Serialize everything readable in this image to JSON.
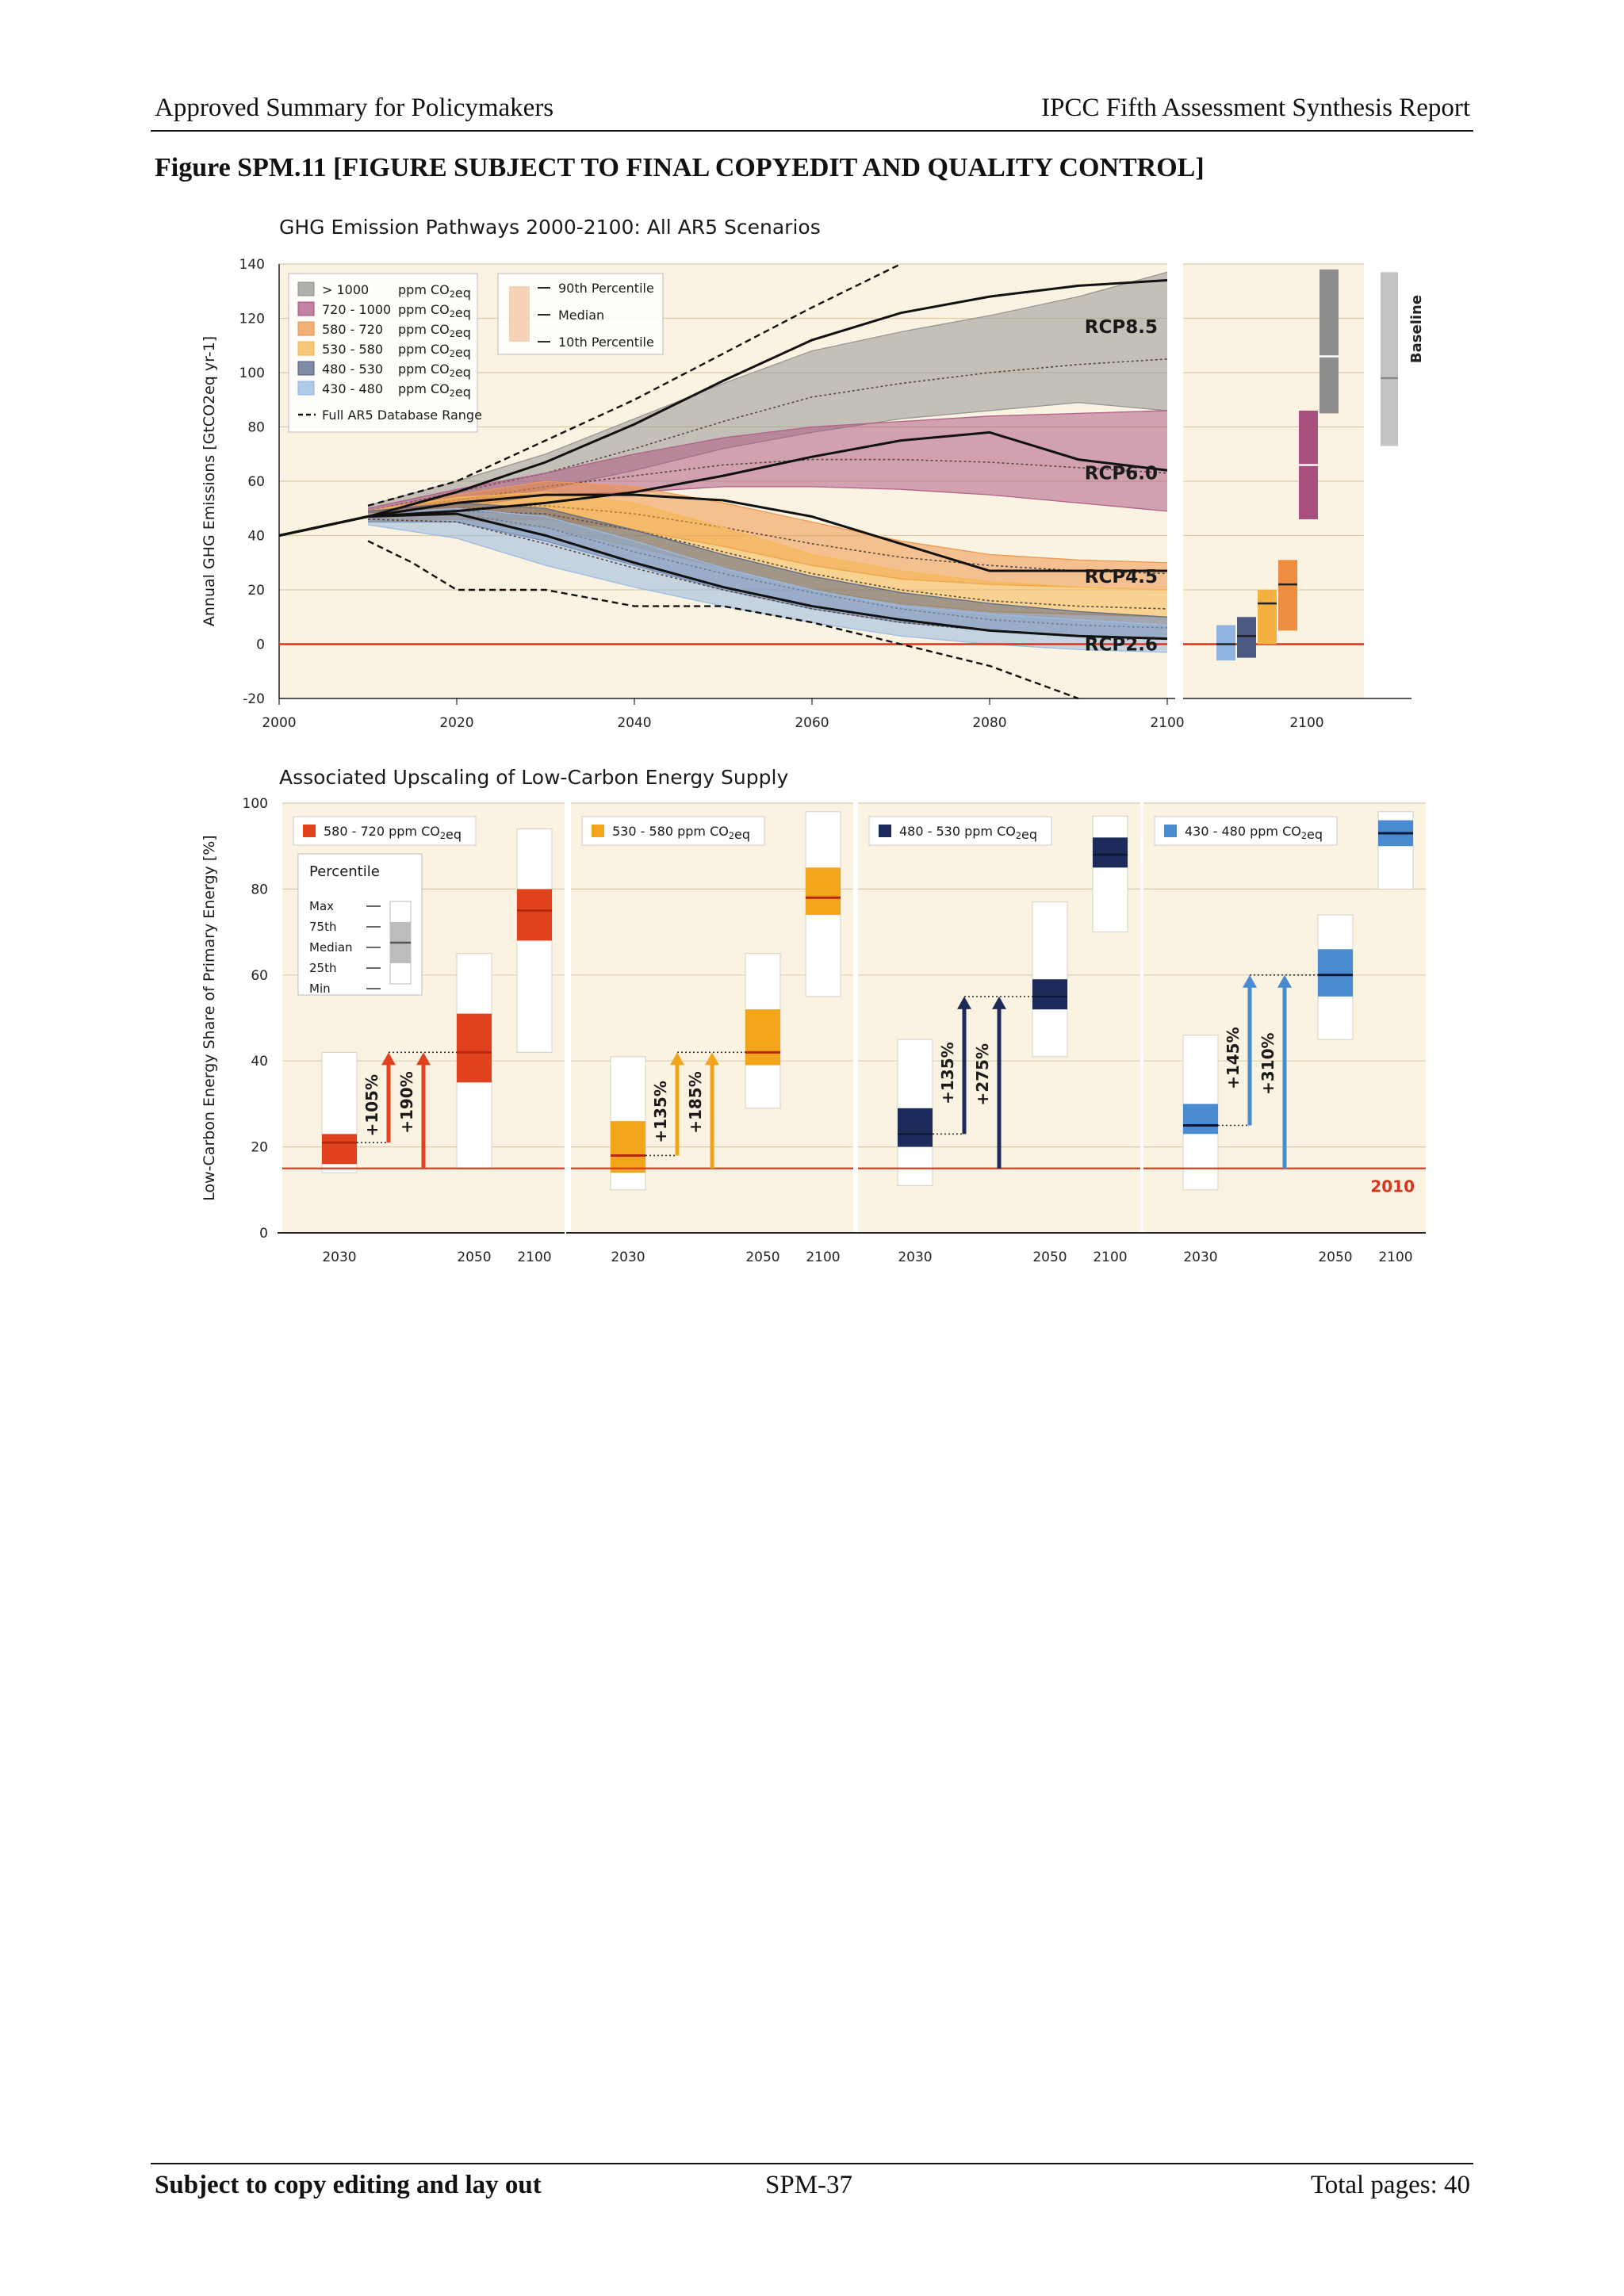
{
  "header": {
    "left": "Approved Summary for Policymakers",
    "right": "IPCC Fifth Assessment Synthesis Report"
  },
  "figure_title": "Figure SPM.11 [FIGURE SUBJECT TO FINAL COPYEDIT AND QUALITY CONTROL]",
  "footer": {
    "left": "Subject to copy editing and lay out",
    "center": "SPM-37",
    "right": "Total pages: 40"
  },
  "colors": {
    "background_panel": "#fbf3e1",
    "gt1000": "#8d8d8d",
    "c720": "#a84f7e",
    "c580": "#ed8d3f",
    "c530": "#f3b142",
    "c480": "#4b5a80",
    "c430": "#8fb4e1",
    "red_line": "#d9341e",
    "red_bar": "#e0421e",
    "yellow_bar": "#f2a51a",
    "navy_bar": "#1c2b59",
    "blue_bar": "#4a8ad0"
  },
  "chart_data": [
    {
      "type": "area",
      "title": "GHG Emission Pathways 2000-2100: All AR5 Scenarios",
      "ylabel": "Annual GHG Emissions [GtCO2eq yr-1]",
      "xlabel": "",
      "xlim": [
        2000,
        2100
      ],
      "ylim": [
        -20,
        140
      ],
      "xticks": [
        "2000",
        "2020",
        "2040",
        "2060",
        "2080",
        "2100"
      ],
      "yticks": [
        "-20",
        "0",
        "20",
        "40",
        "60",
        "80",
        "100",
        "120",
        "140"
      ],
      "grid": true,
      "legend_entries": [
        "> 1000",
        "720 - 1000",
        "580 - 720",
        "530 - 580",
        "480 - 530",
        "430 - 480"
      ],
      "legend_unit": "ppm CO2eq",
      "legend_range_label": "Full AR5 Database Range",
      "legend_percentiles": [
        "90th Percentile",
        "Median",
        "10th Percentile"
      ],
      "rcp_labels": [
        "RCP8.5",
        "RCP6.0",
        "RCP4.5",
        "RCP2.6"
      ],
      "zero_line": 0,
      "bands": [
        {
          "category": "gt1000",
          "x": [
            2010,
            2020,
            2030,
            2040,
            2050,
            2060,
            2070,
            2080,
            2090,
            2100
          ],
          "p10": [
            47,
            52,
            57,
            64,
            72,
            78,
            83,
            86,
            89,
            86
          ],
          "median": [
            49,
            56,
            63,
            72,
            82,
            91,
            96,
            100,
            103,
            105
          ],
          "p90": [
            51,
            60,
            70,
            83,
            96,
            108,
            115,
            121,
            128,
            137
          ]
        },
        {
          "category": "c720",
          "x": [
            2010,
            2020,
            2030,
            2040,
            2050,
            2060,
            2070,
            2080,
            2090,
            2100
          ],
          "p10": [
            46,
            50,
            55,
            56,
            58,
            58,
            57,
            55,
            52,
            49
          ],
          "median": [
            48,
            53,
            58,
            62,
            66,
            68,
            68,
            67,
            65,
            63
          ],
          "p90": [
            50,
            57,
            63,
            70,
            76,
            80,
            82,
            84,
            85,
            86
          ]
        },
        {
          "category": "c580",
          "x": [
            2010,
            2020,
            2030,
            2040,
            2050,
            2060,
            2070,
            2080,
            2090,
            2100
          ],
          "p10": [
            45,
            46,
            46,
            42,
            36,
            29,
            24,
            22,
            21,
            20
          ],
          "median": [
            47,
            50,
            51,
            48,
            43,
            37,
            32,
            29,
            27,
            26
          ],
          "p90": [
            49,
            55,
            60,
            58,
            52,
            45,
            38,
            33,
            31,
            30
          ]
        },
        {
          "category": "c530",
          "x": [
            2010,
            2020,
            2030,
            2040,
            2050,
            2060,
            2070,
            2080,
            2090,
            2100
          ],
          "p10": [
            45,
            46,
            43,
            36,
            28,
            20,
            15,
            12,
            11,
            10
          ],
          "median": [
            47,
            49,
            48,
            42,
            34,
            26,
            20,
            16,
            14,
            13
          ],
          "p90": [
            49,
            54,
            56,
            52,
            43,
            33,
            27,
            23,
            21,
            20
          ]
        },
        {
          "category": "c480",
          "x": [
            2010,
            2020,
            2030,
            2040,
            2050,
            2060,
            2070,
            2080,
            2090,
            2100
          ],
          "p10": [
            45,
            45,
            38,
            29,
            20,
            13,
            8,
            5,
            3,
            2
          ],
          "median": [
            47,
            48,
            43,
            34,
            26,
            19,
            13,
            9,
            7,
            6
          ],
          "p90": [
            49,
            52,
            50,
            42,
            33,
            25,
            19,
            15,
            12,
            10
          ]
        },
        {
          "category": "c430",
          "x": [
            2010,
            2020,
            2030,
            2040,
            2050,
            2060,
            2070,
            2080,
            2090,
            2100
          ],
          "p10": [
            44,
            39,
            29,
            21,
            14,
            8,
            3,
            0,
            -2,
            -3
          ],
          "median": [
            46,
            45,
            37,
            28,
            20,
            13,
            8,
            5,
            3,
            2
          ],
          "p90": [
            48,
            50,
            47,
            38,
            28,
            20,
            14,
            11,
            9,
            7
          ]
        }
      ],
      "rcp_lines": [
        {
          "name": "RCP8.5",
          "x": [
            2000,
            2010,
            2020,
            2030,
            2040,
            2050,
            2060,
            2070,
            2080,
            2090,
            2100
          ],
          "y": [
            40,
            47,
            56,
            67,
            81,
            97,
            112,
            122,
            128,
            132,
            134
          ]
        },
        {
          "name": "RCP6.0",
          "x": [
            2000,
            2010,
            2020,
            2030,
            2040,
            2050,
            2060,
            2070,
            2080,
            2090,
            2100
          ],
          "y": [
            40,
            47,
            49,
            52,
            56,
            62,
            69,
            75,
            78,
            68,
            64
          ]
        },
        {
          "name": "RCP4.5",
          "x": [
            2000,
            2010,
            2020,
            2030,
            2040,
            2050,
            2060,
            2070,
            2080,
            2090,
            2100
          ],
          "y": [
            40,
            47,
            52,
            55,
            55,
            53,
            47,
            37,
            27,
            27,
            27
          ]
        },
        {
          "name": "RCP2.6",
          "x": [
            2000,
            2010,
            2020,
            2030,
            2040,
            2050,
            2060,
            2070,
            2080,
            2090,
            2100
          ],
          "y": [
            40,
            47,
            48,
            40,
            30,
            21,
            14,
            9,
            5,
            3,
            2
          ]
        }
      ],
      "range_upper": {
        "x": [
          2010,
          2020,
          2030,
          2040,
          2050,
          2060,
          2070
        ],
        "y": [
          51,
          60,
          75,
          90,
          107,
          124,
          140
        ]
      },
      "range_lower": {
        "x": [
          2010,
          2015,
          2020,
          2025,
          2030,
          2040,
          2050,
          2060,
          2070,
          2080,
          2090
        ],
        "y": [
          38,
          30,
          20,
          20,
          20,
          14,
          14,
          8,
          0,
          -8,
          -20
        ]
      },
      "side_label": "Baseline",
      "side_xtick": "2100",
      "side_bars": [
        {
          "category": "c430",
          "low": -6,
          "high": 7,
          "median": 0
        },
        {
          "category": "c480",
          "low": -5,
          "high": 10,
          "median": 3
        },
        {
          "category": "c530",
          "low": 0,
          "high": 20,
          "median": 15
        },
        {
          "category": "c580",
          "low": 5,
          "high": 31,
          "median": 22
        },
        {
          "category": "c720",
          "low": 46,
          "high": 86,
          "median": 66
        },
        {
          "category": "gt1000",
          "low": 85,
          "high": 138,
          "median": 106
        },
        {
          "category": "baseline",
          "low": 73,
          "high": 137,
          "median": 98
        }
      ]
    },
    {
      "type": "bar",
      "title": "Associated Upscaling of Low-Carbon Energy Supply",
      "ylabel": "Low-Carbon Energy Share of Primary Energy [%]",
      "xlabel": "",
      "ylim": [
        0,
        100
      ],
      "yticks": [
        "0",
        "20",
        "40",
        "60",
        "80",
        "100"
      ],
      "reference_line": {
        "value": 15,
        "label": "2010"
      },
      "percentile_legend": {
        "title": "Percentile",
        "items": [
          "Max",
          "75th",
          "Median",
          "25th",
          "Min"
        ]
      },
      "panels": [
        {
          "legend": "580 - 720 ppm CO2eq",
          "color_key": "red_bar",
          "xticks": [
            "2030",
            "2050",
            "2100"
          ],
          "boxes": [
            {
              "year": "2030",
              "min": 14,
              "q25": 16,
              "median": 21,
              "q75": 23,
              "max": 42
            },
            {
              "year": "2050",
              "min": 15,
              "q25": 35,
              "median": 42,
              "q75": 51,
              "max": 65
            },
            {
              "year": "2100",
              "min": 42,
              "q25": 68,
              "median": 75,
              "q75": 80,
              "max": 94
            }
          ],
          "increase_labels": [
            "+105%",
            "+190%"
          ]
        },
        {
          "legend": "530 - 580 ppm CO2eq",
          "color_key": "yellow_bar",
          "xticks": [
            "2030",
            "2050",
            "2100"
          ],
          "boxes": [
            {
              "year": "2030",
              "min": 10,
              "q25": 14,
              "median": 18,
              "q75": 26,
              "max": 41
            },
            {
              "year": "2050",
              "min": 29,
              "q25": 39,
              "median": 42,
              "q75": 52,
              "max": 65
            },
            {
              "year": "2100",
              "min": 55,
              "q25": 74,
              "median": 78,
              "q75": 85,
              "max": 98
            }
          ],
          "increase_labels": [
            "+135%",
            "+185%"
          ]
        },
        {
          "legend": "480 - 530 ppm CO2eq",
          "color_key": "navy_bar",
          "xticks": [
            "2030",
            "2050",
            "2100"
          ],
          "boxes": [
            {
              "year": "2030",
              "min": 11,
              "q25": 20,
              "median": 23,
              "q75": 29,
              "max": 45
            },
            {
              "year": "2050",
              "min": 41,
              "q25": 52,
              "median": 55,
              "q75": 59,
              "max": 77
            },
            {
              "year": "2100",
              "min": 70,
              "q25": 85,
              "median": 88,
              "q75": 92,
              "max": 97
            }
          ],
          "increase_labels": [
            "+135%",
            "+275%"
          ]
        },
        {
          "legend": "430 - 480 ppm CO2eq",
          "color_key": "blue_bar",
          "xticks": [
            "2030",
            "2050",
            "2100"
          ],
          "boxes": [
            {
              "year": "2030",
              "min": 10,
              "q25": 23,
              "median": 25,
              "q75": 30,
              "max": 46
            },
            {
              "year": "2050",
              "min": 45,
              "q25": 55,
              "median": 60,
              "q75": 66,
              "max": 74
            },
            {
              "year": "2100",
              "min": 80,
              "q25": 90,
              "median": 93,
              "q75": 96,
              "max": 98
            }
          ],
          "increase_labels": [
            "+145%",
            "+310%"
          ]
        }
      ]
    }
  ]
}
